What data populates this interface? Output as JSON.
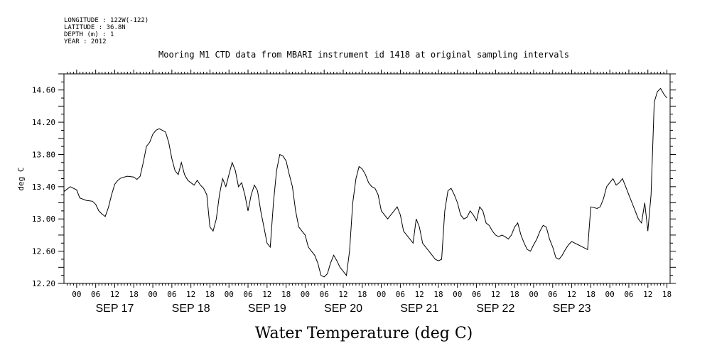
{
  "header": {
    "meta_lines": [
      "LONGITUDE : 122W(-122)",
      "LATITUDE : 36.8N",
      "DEPTH (m) : 1",
      "YEAR : 2012"
    ],
    "title": "Mooring M1 CTD data from MBARI instrument id 1418 at original sampling intervals"
  },
  "chart_data": {
    "type": "line",
    "title": "Mooring M1 CTD data from MBARI instrument id 1418 at original sampling intervals",
    "xlabel": "Water Temperature (deg C)",
    "ylabel": "deg C",
    "ylim": [
      12.2,
      14.8
    ],
    "yticks": [
      "12.20",
      "12.60",
      "13.00",
      "13.40",
      "13.80",
      "14.20",
      "14.60"
    ],
    "hour_labels": [
      "00",
      "06",
      "12",
      "18",
      "00",
      "06",
      "12",
      "18",
      "00",
      "06",
      "12",
      "18",
      "00",
      "06",
      "12",
      "18",
      "00",
      "06",
      "12",
      "18",
      "00",
      "06",
      "12",
      "18",
      "00",
      "06",
      "12",
      "18",
      "00",
      "06",
      "12",
      "18"
    ],
    "day_labels": [
      "SEP 17",
      "SEP 18",
      "SEP 19",
      "SEP 20",
      "SEP 21",
      "SEP 22",
      "SEP 23"
    ],
    "grid": false,
    "series": [
      {
        "x_unit": "hours since 2012-09-17 00:00",
        "points": [
          [
            -4,
            13.34
          ],
          [
            -2,
            13.4
          ],
          [
            0,
            13.36
          ],
          [
            1,
            13.26
          ],
          [
            3,
            13.23
          ],
          [
            5,
            13.22
          ],
          [
            6,
            13.18
          ],
          [
            7,
            13.1
          ],
          [
            8,
            13.06
          ],
          [
            9,
            13.03
          ],
          [
            10,
            13.14
          ],
          [
            11,
            13.3
          ],
          [
            12,
            13.43
          ],
          [
            13,
            13.48
          ],
          [
            14,
            13.51
          ],
          [
            16,
            13.53
          ],
          [
            18,
            13.52
          ],
          [
            19,
            13.49
          ],
          [
            20,
            13.53
          ],
          [
            21,
            13.7
          ],
          [
            22,
            13.9
          ],
          [
            23,
            13.95
          ],
          [
            24,
            14.05
          ],
          [
            25,
            14.1
          ],
          [
            26,
            14.12
          ],
          [
            27,
            14.1
          ],
          [
            28,
            14.08
          ],
          [
            29,
            13.95
          ],
          [
            30,
            13.75
          ],
          [
            31,
            13.6
          ],
          [
            32,
            13.55
          ],
          [
            33,
            13.7
          ],
          [
            34,
            13.55
          ],
          [
            35,
            13.48
          ],
          [
            36,
            13.45
          ],
          [
            37,
            13.42
          ],
          [
            38,
            13.48
          ],
          [
            39,
            13.42
          ],
          [
            40,
            13.38
          ],
          [
            41,
            13.3
          ],
          [
            42,
            12.9
          ],
          [
            43,
            12.85
          ],
          [
            44,
            13.0
          ],
          [
            45,
            13.3
          ],
          [
            46,
            13.5
          ],
          [
            47,
            13.4
          ],
          [
            48,
            13.55
          ],
          [
            49,
            13.7
          ],
          [
            50,
            13.6
          ],
          [
            51,
            13.4
          ],
          [
            52,
            13.45
          ],
          [
            53,
            13.3
          ],
          [
            54,
            13.1
          ],
          [
            55,
            13.3
          ],
          [
            56,
            13.42
          ],
          [
            57,
            13.35
          ],
          [
            58,
            13.1
          ],
          [
            59,
            12.9
          ],
          [
            60,
            12.7
          ],
          [
            61,
            12.65
          ],
          [
            62,
            13.2
          ],
          [
            63,
            13.6
          ],
          [
            64,
            13.8
          ],
          [
            65,
            13.78
          ],
          [
            66,
            13.72
          ],
          [
            67,
            13.55
          ],
          [
            68,
            13.4
          ],
          [
            69,
            13.1
          ],
          [
            70,
            12.9
          ],
          [
            71,
            12.85
          ],
          [
            72,
            12.8
          ],
          [
            73,
            12.65
          ],
          [
            74,
            12.6
          ],
          [
            75,
            12.55
          ],
          [
            76,
            12.45
          ],
          [
            77,
            12.3
          ],
          [
            78,
            12.28
          ],
          [
            79,
            12.32
          ],
          [
            80,
            12.45
          ],
          [
            81,
            12.55
          ],
          [
            82,
            12.48
          ],
          [
            83,
            12.4
          ],
          [
            84,
            12.35
          ],
          [
            85,
            12.3
          ],
          [
            86,
            12.6
          ],
          [
            87,
            13.2
          ],
          [
            88,
            13.5
          ],
          [
            89,
            13.65
          ],
          [
            90,
            13.62
          ],
          [
            91,
            13.55
          ],
          [
            92,
            13.45
          ],
          [
            93,
            13.4
          ],
          [
            94,
            13.38
          ],
          [
            95,
            13.3
          ],
          [
            96,
            13.1
          ],
          [
            97,
            13.05
          ],
          [
            98,
            13.0
          ],
          [
            99,
            13.05
          ],
          [
            100,
            13.1
          ],
          [
            101,
            13.15
          ],
          [
            102,
            13.05
          ],
          [
            103,
            12.85
          ],
          [
            104,
            12.8
          ],
          [
            105,
            12.75
          ],
          [
            106,
            12.7
          ],
          [
            107,
            13.0
          ],
          [
            108,
            12.9
          ],
          [
            109,
            12.7
          ],
          [
            110,
            12.65
          ],
          [
            111,
            12.6
          ],
          [
            112,
            12.55
          ],
          [
            113,
            12.5
          ],
          [
            114,
            12.48
          ],
          [
            115,
            12.5
          ],
          [
            116,
            13.1
          ],
          [
            117,
            13.35
          ],
          [
            118,
            13.38
          ],
          [
            119,
            13.3
          ],
          [
            120,
            13.2
          ],
          [
            121,
            13.05
          ],
          [
            122,
            13.0
          ],
          [
            123,
            13.02
          ],
          [
            124,
            13.1
          ],
          [
            125,
            13.05
          ],
          [
            126,
            12.98
          ],
          [
            127,
            13.15
          ],
          [
            128,
            13.1
          ],
          [
            129,
            12.95
          ],
          [
            130,
            12.92
          ],
          [
            131,
            12.85
          ],
          [
            132,
            12.8
          ],
          [
            133,
            12.78
          ],
          [
            134,
            12.8
          ],
          [
            135,
            12.78
          ],
          [
            136,
            12.75
          ],
          [
            137,
            12.8
          ],
          [
            138,
            12.9
          ],
          [
            139,
            12.95
          ],
          [
            140,
            12.8
          ],
          [
            141,
            12.7
          ],
          [
            142,
            12.62
          ],
          [
            143,
            12.6
          ],
          [
            144,
            12.68
          ],
          [
            145,
            12.75
          ],
          [
            146,
            12.85
          ],
          [
            147,
            12.92
          ],
          [
            148,
            12.9
          ],
          [
            149,
            12.75
          ],
          [
            150,
            12.65
          ],
          [
            151,
            12.52
          ],
          [
            152,
            12.5
          ],
          [
            153,
            12.55
          ],
          [
            154,
            12.62
          ],
          [
            155,
            12.68
          ],
          [
            156,
            12.72
          ],
          [
            157,
            12.7
          ],
          [
            158,
            12.68
          ],
          [
            159,
            12.66
          ],
          [
            160,
            12.64
          ],
          [
            161,
            12.62
          ],
          [
            162,
            13.15
          ],
          [
            163,
            13.14
          ],
          [
            164,
            13.13
          ],
          [
            165,
            13.15
          ],
          [
            166,
            13.25
          ],
          [
            167,
            13.4
          ],
          [
            168,
            13.45
          ],
          [
            169,
            13.5
          ],
          [
            170,
            13.42
          ],
          [
            171,
            13.45
          ],
          [
            172,
            13.5
          ],
          [
            173,
            13.4
          ],
          [
            174,
            13.3
          ],
          [
            175,
            13.2
          ],
          [
            176,
            13.1
          ],
          [
            177,
            13.0
          ],
          [
            178,
            12.95
          ],
          [
            179,
            13.2
          ],
          [
            180,
            12.85
          ],
          [
            181,
            13.3
          ],
          [
            182,
            14.45
          ],
          [
            183,
            14.58
          ],
          [
            184,
            14.62
          ],
          [
            185,
            14.55
          ],
          [
            186,
            14.5
          ]
        ]
      }
    ]
  }
}
